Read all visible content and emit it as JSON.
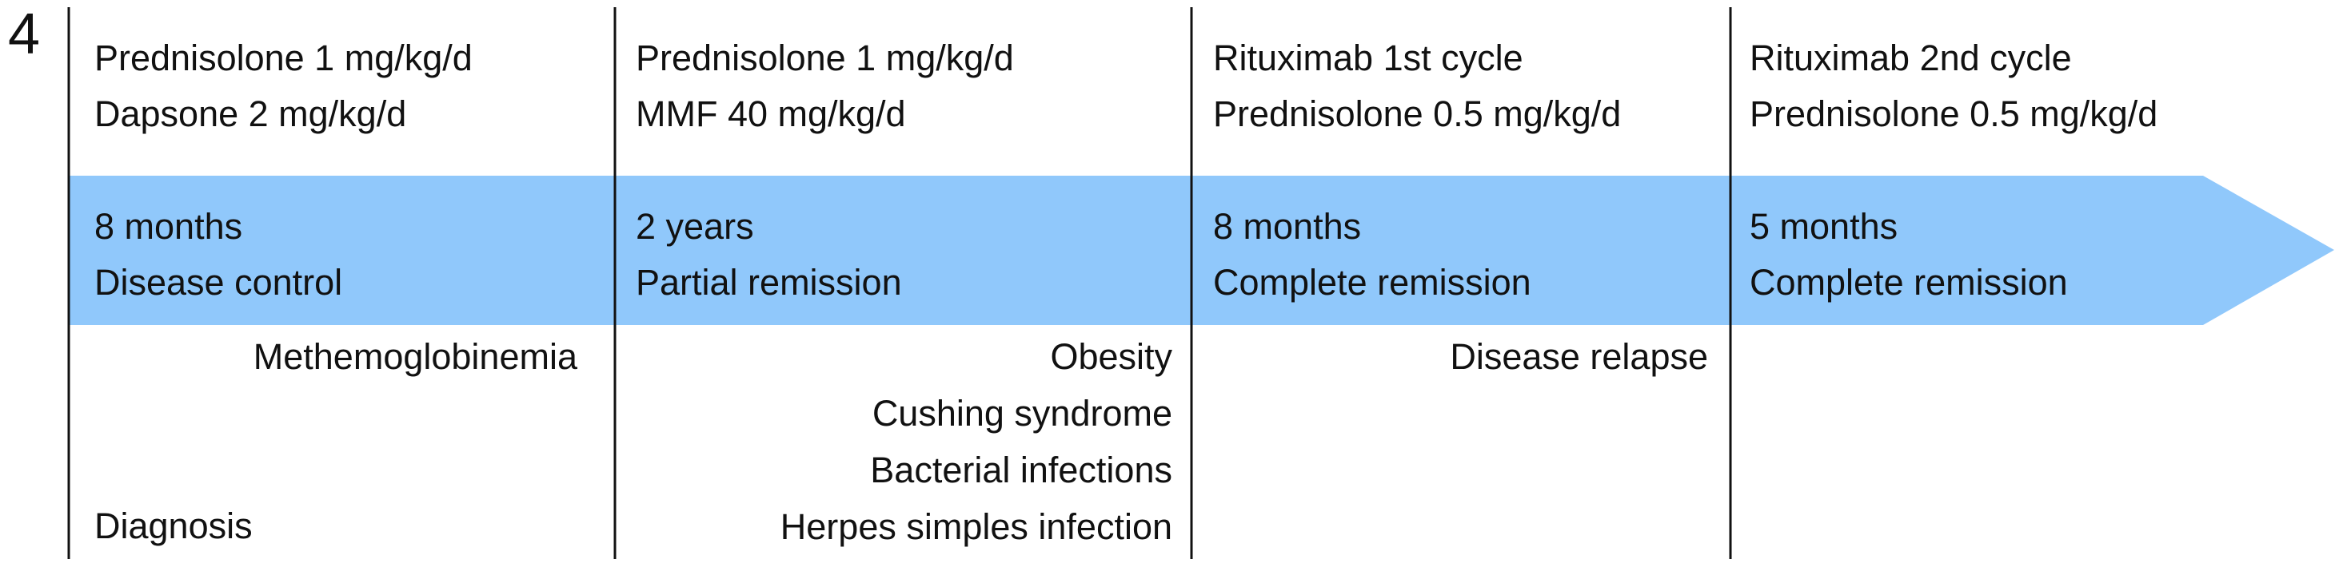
{
  "panel_label": "4",
  "phases": [
    {
      "treatments": [
        "Prednisolone 1 mg/kg/d",
        "Dapsone 2 mg/kg/d"
      ],
      "duration": "8 months",
      "outcome": "Disease control",
      "events": [
        "Methemoglobinemia"
      ]
    },
    {
      "treatments": [
        "Prednisolone 1 mg/kg/d",
        "MMF 40 mg/kg/d"
      ],
      "duration": "2 years",
      "outcome": "Partial remission",
      "events": [
        "Obesity",
        "Cushing syndrome",
        "Bacterial infections",
        "Herpes simples infection"
      ]
    },
    {
      "treatments": [
        "Rituximab 1st cycle",
        "Prednisolone 0.5 mg/kg/d"
      ],
      "duration": "8 months",
      "outcome": "Complete remission",
      "events": [
        "Disease relapse"
      ]
    },
    {
      "treatments": [
        "Rituximab 2nd cycle",
        "Prednisolone 0.5 mg/kg/d"
      ],
      "duration": "5 months",
      "outcome": "Complete remission",
      "events": []
    }
  ],
  "start_event": "Diagnosis"
}
